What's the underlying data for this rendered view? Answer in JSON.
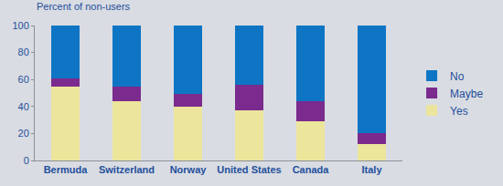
{
  "chart_data": {
    "type": "bar",
    "ylabel": "Percent of non-users",
    "categories": [
      "Bermuda",
      "Switzerland",
      "Norway",
      "United States",
      "Canada",
      "Italy"
    ],
    "series": [
      {
        "name": "Yes",
        "color": "#ece59c",
        "values": [
          55,
          44,
          40,
          37,
          29,
          12
        ]
      },
      {
        "name": "Maybe",
        "color": "#7b2a8e",
        "values": [
          6,
          11,
          9,
          19,
          15,
          8
        ]
      },
      {
        "name": "No",
        "color": "#0d75c4",
        "values": [
          39,
          45,
          51,
          44,
          56,
          80
        ]
      }
    ],
    "ylim": [
      0,
      100
    ],
    "yticks": [
      0,
      20,
      40,
      60,
      80,
      100
    ],
    "stacked": true,
    "grid": false,
    "legend": "right"
  }
}
